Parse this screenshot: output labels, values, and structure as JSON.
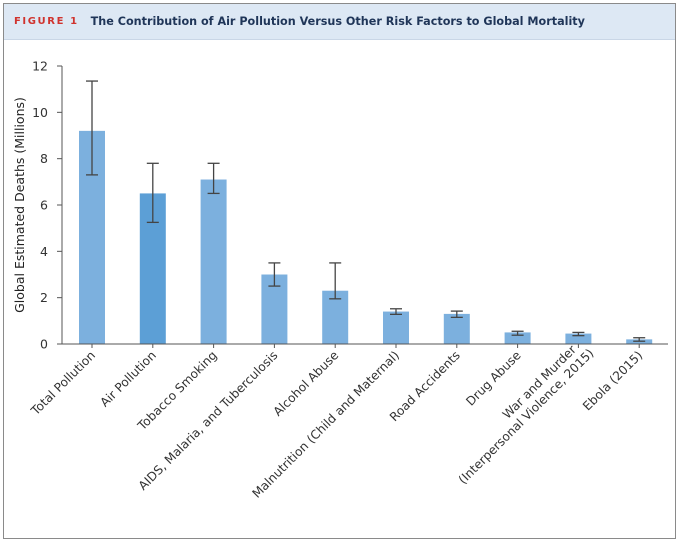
{
  "figure": {
    "label": "FIGURE 1",
    "title": "The Contribution of Air Pollution Versus Other Risk Factors to Global Mortality"
  },
  "colors": {
    "bar": "#7cb0de",
    "bar_highlight": "#5c9fd6",
    "error_bar": "#444444",
    "axis": "#555555",
    "header_bg": "#dde8f4",
    "label_red": "#d0332e",
    "title_navy": "#1f3558"
  },
  "chart_data": {
    "type": "bar",
    "title": "The Contribution of Air Pollution Versus Other Risk Factors to Global Mortality",
    "xlabel": "",
    "ylabel": "Global Estimated Deaths (Millions)",
    "ylim": [
      0,
      12
    ],
    "yticks": [
      0,
      2,
      4,
      6,
      8,
      10,
      12
    ],
    "grid": false,
    "categories": [
      [
        "Total Pollution"
      ],
      [
        "Air Pollution"
      ],
      [
        "Tobacco Smoking"
      ],
      [
        "AIDS, Malaria, and Tuberculosis"
      ],
      [
        "Alcohol Abuse"
      ],
      [
        "Malnutrition (Child and Maternal)"
      ],
      [
        "Road Accidents"
      ],
      [
        "Drug Abuse"
      ],
      [
        "War and Murder",
        "(Interpersonal Violence, 2015)"
      ],
      [
        "Ebola (2015)"
      ]
    ],
    "values": [
      9.2,
      6.5,
      7.1,
      3.0,
      2.3,
      1.4,
      1.3,
      0.5,
      0.45,
      0.2
    ],
    "error_low": [
      7.3,
      5.25,
      6.5,
      2.5,
      1.95,
      1.28,
      1.15,
      0.38,
      0.36,
      0.12
    ],
    "error_high": [
      11.35,
      7.8,
      7.8,
      3.5,
      3.5,
      1.52,
      1.42,
      0.55,
      0.5,
      0.27
    ],
    "highlight_index": 1
  }
}
